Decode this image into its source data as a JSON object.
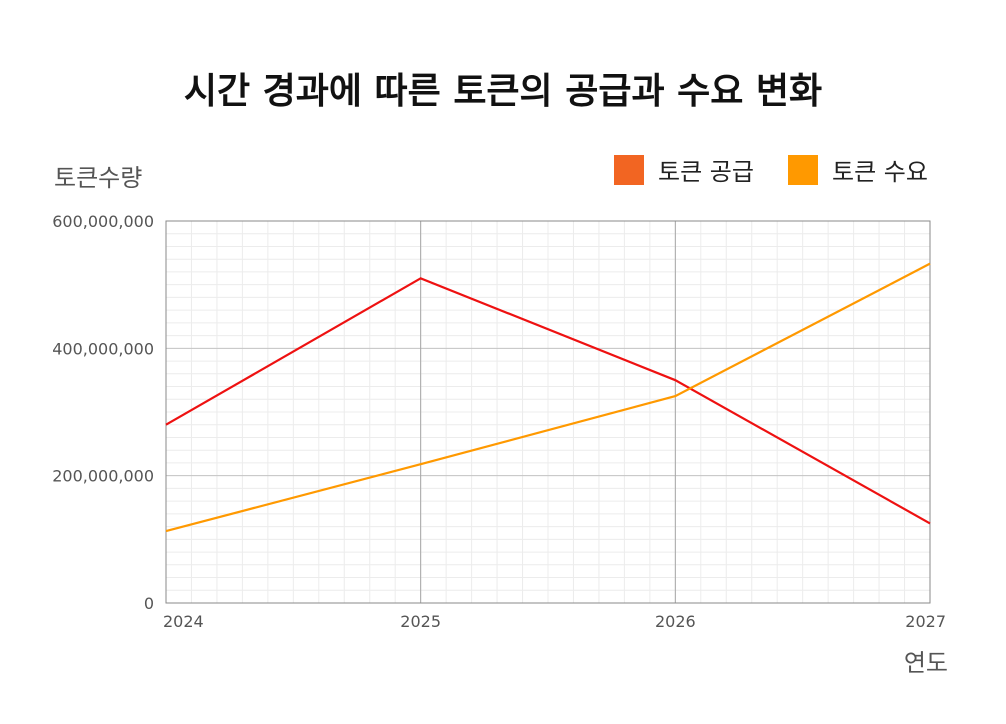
{
  "chart_data": {
    "type": "line",
    "title": "시간 경과에 따른 토큰의 공급과 수요 변화",
    "xlabel": "연도",
    "ylabel": "토큰수량",
    "x": [
      "2024",
      "2025",
      "2026",
      "2027"
    ],
    "ylim": [
      0,
      600000000
    ],
    "yticks": [
      "0",
      "200,000,000",
      "400,000,000",
      "600,000,000"
    ],
    "grid": true,
    "legend_position": "top-right",
    "series": [
      {
        "name": "토큰 공급",
        "color": "#ee1111",
        "legend_color": "#f26522",
        "values": [
          280000000,
          510000000,
          350000000,
          125000000
        ]
      },
      {
        "name": "토큰 수요",
        "color": "#ff9900",
        "legend_color": "#ff9900",
        "values": [
          113000000,
          218000000,
          325000000,
          533000000
        ]
      }
    ]
  }
}
